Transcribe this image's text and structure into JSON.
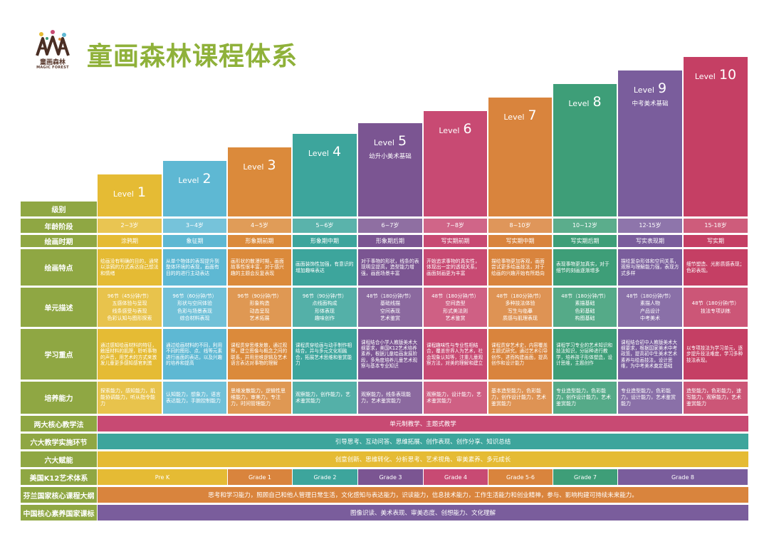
{
  "logo": {
    "cn": "童画森林",
    "en": "MAGIC FOREST"
  },
  "title": "童画森林课程体系",
  "colors": [
    "#e5bb34",
    "#5eb8d3",
    "#db8a3b",
    "#3da59c",
    "#7b5592",
    "#c84a73",
    "#d9843d",
    "#3e9e78",
    "#7a5d9c",
    "#c53f64"
  ],
  "levels": [
    {
      "word": "Level",
      "num": "1",
      "sub": ""
    },
    {
      "word": "Level",
      "num": "2",
      "sub": ""
    },
    {
      "word": "Level",
      "num": "3",
      "sub": ""
    },
    {
      "word": "Level",
      "num": "4",
      "sub": ""
    },
    {
      "word": "Level",
      "num": "5",
      "sub": "幼升小美术基础"
    },
    {
      "word": "Level",
      "num": "6",
      "sub": ""
    },
    {
      "word": "Level",
      "num": "7",
      "sub": ""
    },
    {
      "word": "Level",
      "num": "8",
      "sub": ""
    },
    {
      "word": "Level",
      "num": "9",
      "sub": "中考美术基础"
    },
    {
      "word": "Level",
      "num": "10",
      "sub": ""
    }
  ],
  "row_labels": {
    "level": "级别",
    "age": "年龄阶段",
    "period": "绘画时期",
    "features": "绘画特点",
    "units": "单元描述",
    "focus": "学习重点",
    "abilities": "培养能力",
    "core_methods": "两大核心教学法",
    "six_steps": "六大教学实施环节",
    "six_powers": "六大赋能",
    "k12": "美国K12艺术体系",
    "finland": "芬兰国家核心课程大纲",
    "china": "中国核心素养国家课标"
  },
  "ages": [
    "2~3岁",
    "3~4岁",
    "4~5岁",
    "5~6岁",
    "6~7岁",
    "7~8岁",
    "8~10岁",
    "10~12岁",
    "12-15岁",
    "15-18岁"
  ],
  "periods": [
    "涂鸦期",
    "象征期",
    "形象期前期",
    "形象期中期",
    "形象期后期",
    "写实期前期",
    "写实期中期",
    "写实期后期",
    "写实表现期",
    "写实期"
  ],
  "features": [
    "绘画没有明确的目的，通常以涂鸦的方式表达自己想法和情绪",
    "从单个物体的表现提升到整体环境的表现，画面有目的的进行主动表达",
    "画形状的散漫时期，画面故事性很丰富，对于感兴趣的主题会反复表现",
    "画面装饰性加强，有意识的增加趣味表达",
    "对于事物的形状，线条的表现明显提高，造型能力增强，画面场景丰富",
    "开始追求事物的真实性，体现出一定的透视关系，画面刻画更为丰富",
    "描绘事物更加客观，画面尝试更多绘画技法，对于绘画的兴趣开始有所趋向",
    "表现事物更加真实，对于细节的刻画逐渐增多",
    "描绘复杂形体和空间关系，观察与理解能力强，表现方式多样",
    "细节塑造、光影质感表现；色彩表现。"
  ],
  "units": [
    [
      "96节（45分钟/节）",
      "五感体验与呈现",
      "线条感受与表现",
      "色彩认知与图形探索"
    ],
    [
      "96节（60分钟/节）",
      "形状与空间体验",
      "色彩与场景表现",
      "综合材料表现"
    ],
    [
      "96节（90分钟/节）",
      "形象构造",
      "动态呈现",
      "艺术拓展"
    ],
    [
      "96节（90分钟/节）",
      "点线面构成",
      "形体表现",
      "趣味创作"
    ],
    [
      "48节（180分钟/节）",
      "基础线描",
      "空间表现",
      "艺术鉴赏"
    ],
    [
      "48节（180分钟/节）",
      "空间造型",
      "形式美法则",
      "艺术鉴赏"
    ],
    [
      "48节（180分钟/节）",
      "多种技法体验",
      "写生与临摹",
      "质感与肌理表现"
    ],
    [
      "48节（180分钟/节）",
      "素描基础",
      "色彩基础",
      "构图基础"
    ],
    [
      "48节（180分钟/节）",
      "素描人物",
      "产品设计",
      "中考美术"
    ],
    [
      "48节（180分钟/节）",
      "技法专项训练"
    ]
  ],
  "focus": [
    "通过感知绘画材料的特征，触摸材料的肌理，聆听事物的声音，用艺术的方式来激发儿童更多感知感官刺激",
    "通过绘画材料的不同，利用不同的图形、点、线等元素进行画面的表达，以及兴趣的培养和提高",
    "课程贯穿思维发散，通过观察，建立图像与概念之间的联系，并用思维逻辑及艺术语言表达对事物的理解",
    "课程贯穿绘画与动手制作相结合，并与多元文化相融合，拓展艺术思维和鉴赏能力",
    "课程结合小学人教版美术大纲要求，美国K12艺术培养素养，根据儿童绘画发展阶段，多角度培养儿童艺术观察与基本专业知识",
    "课程趣味性与专业性相结合，覆盖世界人为艺术，社会现象认知等，注重儿童观察方法，对美的理解和建立",
    "课程贯穿艺术史，内容覆盖主题式研究，通过艺术引导创作，进而构建画面，提高创作和设计能力",
    "课程学习专业的艺术知识和技法知识，分层种进行教学，培养孩子形体塑造，设计思维，主题创作",
    "课程结合初中人教版美术大纲要求，根据国家美术中考政策，提高初中生美术艺术素养与绘画技法，设计思维，为中考美术奠定基础",
    "以专项技法为学习单元，逐步提升技法难度，学习多种技法表现。"
  ],
  "abilities": [
    "探索能力，感知能力，肌能协调能力，听从指令能力",
    "认知能力，想象力，语言表达能力，手腕控制能力",
    "思维发散能力，逻辑性思维能力，审美力，专注力，时间管理能力",
    "观察能力，创作能力，艺术鉴赏能力",
    "观察能力，线条表现能力，艺术鉴赏能力",
    "观察能力，设计能力，艺术鉴赏能力",
    "基本造型能力，色彩能力，创作设计能力，艺术鉴赏能力",
    "专业造型能力，色彩能力，创作设计能力，艺术鉴赏能力",
    "专业造型能力，色彩能力，设计能力，艺术鉴赏能力",
    "造型能力，色彩能力，速写能力，观察能力，艺术鉴赏能力"
  ],
  "core_methods": "单元制教学、主题式教学",
  "six_steps": "引导思考、互动问答、思维拓展、创作表现、创作分享、知识总结",
  "six_powers": "创意创新、思维转化、分析思考、艺术视角、审美素养、多元成长",
  "k12": [
    "Pre K",
    "Grade 1",
    "Grade 2",
    "Grade 3",
    "Grade 4",
    "Grade 5-6",
    "Grade 7",
    "Grade 8"
  ],
  "finland": "思考和学习能力，照顾自己和他人管理日常生活，文化感知与表达能力，识读能力，信息技术能力，工作生活能力和创业精神，参与、影响构建可持续未来能力。",
  "china": "图像识读、美术表现、审美态度、创想能力、文化理解"
}
